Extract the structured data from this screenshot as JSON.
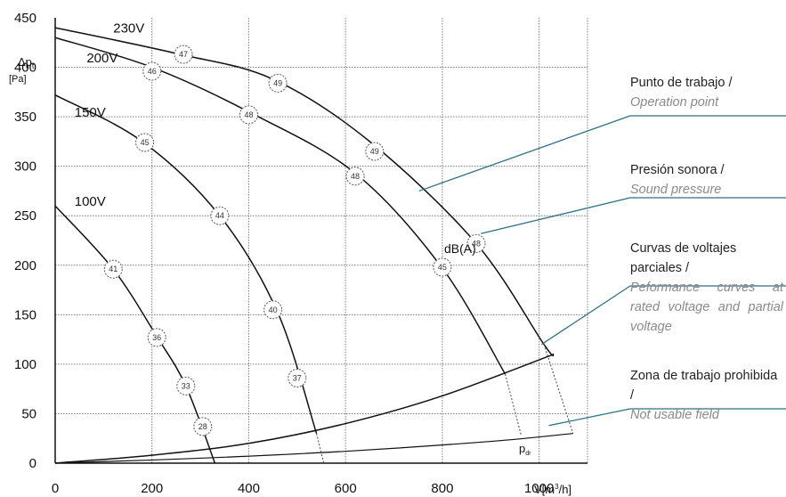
{
  "chart_data": {
    "type": "line",
    "x_ticks": [
      "0",
      "200",
      "400",
      "600",
      "800",
      "1000"
    ],
    "y_ticks": [
      "0",
      "50",
      "100",
      "150",
      "200",
      "250",
      "300",
      "350",
      "400",
      "450"
    ],
    "xlim": [
      0,
      1100
    ],
    "ylim": [
      0,
      450
    ],
    "grid": true,
    "ylabel_top": "Δp",
    "ylabel_sub": "t",
    "ylabel_unit": "[Pa]",
    "xlabel_prefix": "V",
    "xlabel_unit": "[m",
    "xlabel_sup": "3",
    "xlabel_suffix": "/h]",
    "series": [
      {
        "name": "230V",
        "x": [
          0,
          250,
          450,
          650,
          870,
          1010,
          1030
        ],
        "y": [
          440,
          414,
          388,
          325,
          222,
          120,
          110
        ]
      },
      {
        "name": "200V",
        "x": [
          0,
          200,
          400,
          620,
          800,
          930
        ],
        "y": [
          430,
          400,
          355,
          293,
          197,
          90
        ]
      },
      {
        "name": "150V",
        "x": [
          0,
          180,
          340,
          460,
          540
        ],
        "y": [
          372,
          325,
          250,
          152,
          30
        ]
      },
      {
        "name": "100V",
        "x": [
          0,
          120,
          210,
          270,
          330
        ],
        "y": [
          260,
          196,
          128,
          78,
          0
        ]
      }
    ],
    "system_curve": {
      "x": [
        0,
        200,
        400,
        600,
        800,
        1030
      ],
      "y": [
        0,
        8,
        20,
        40,
        68,
        110
      ]
    },
    "pdr_curve": {
      "label": "p",
      "label_sub": "dr",
      "x": [
        0,
        300,
        600,
        900,
        1070
      ],
      "y": [
        0,
        5,
        12,
        22,
        30
      ]
    },
    "boundary_lines": [
      {
        "x": [
          540,
          555
        ],
        "y": [
          30,
          0
        ]
      },
      {
        "x": [
          930,
          963
        ],
        "y": [
          90,
          28
        ]
      },
      {
        "x": [
          1010,
          1070
        ],
        "y": [
          120,
          30
        ]
      }
    ],
    "sound_points": [
      {
        "x": 265,
        "y": 413,
        "label": "47"
      },
      {
        "x": 200,
        "y": 396,
        "label": "46"
      },
      {
        "x": 460,
        "y": 384,
        "label": "49"
      },
      {
        "x": 400,
        "y": 352,
        "label": "48"
      },
      {
        "x": 660,
        "y": 315,
        "label": "49"
      },
      {
        "x": 620,
        "y": 290,
        "label": "48"
      },
      {
        "x": 870,
        "y": 222,
        "label": "48"
      },
      {
        "x": 800,
        "y": 198,
        "label": "45"
      },
      {
        "x": 185,
        "y": 324,
        "label": "45"
      },
      {
        "x": 340,
        "y": 250,
        "label": "44"
      },
      {
        "x": 450,
        "y": 155,
        "label": "40"
      },
      {
        "x": 500,
        "y": 86,
        "label": "37"
      },
      {
        "x": 120,
        "y": 196,
        "label": "41"
      },
      {
        "x": 210,
        "y": 127,
        "label": "36"
      },
      {
        "x": 270,
        "y": 78,
        "label": "33"
      },
      {
        "x": 305,
        "y": 37,
        "label": "28"
      }
    ],
    "series_label_positions": [
      {
        "label": "230V",
        "x": 120,
        "y": 435
      },
      {
        "label": "200V",
        "x": 65,
        "y": 405
      },
      {
        "label": "150V",
        "x": 40,
        "y": 350
      },
      {
        "label": "100V",
        "x": 40,
        "y": 260
      }
    ],
    "dba_label": "dB(A)",
    "leaders": [
      {
        "from": [
          752,
          275
        ],
        "to": [
          1200,
          350
        ]
      },
      {
        "from": [
          880,
          232
        ],
        "to": [
          1200,
          273
        ]
      },
      {
        "from": [
          1005,
          120
        ],
        "to": [
          1200,
          156
        ]
      },
      {
        "from": [
          1020,
          38
        ],
        "to": [
          1200,
          50
        ]
      }
    ]
  },
  "annotations": [
    {
      "es": "Punto de trabajo /",
      "en": "Operation point"
    },
    {
      "es": "Presión sonora /",
      "en": "Sound pressure"
    },
    {
      "es": "Curvas de voltajes parciales /",
      "en": "Peformance curves at rated voltage and partial voltage"
    },
    {
      "es": "Zona de trabajo prohibida /",
      "en": "Not usable field"
    }
  ],
  "colors": {
    "curve": "#111111",
    "grid": "#7a7a7a",
    "leader": "#2e6f86",
    "marker": "#555555"
  }
}
